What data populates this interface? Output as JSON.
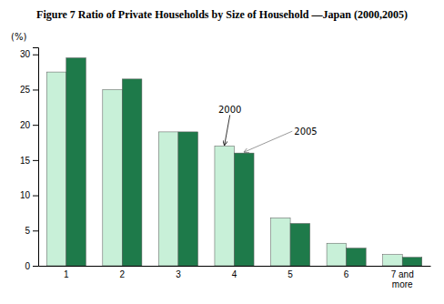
{
  "chart_data": {
    "type": "bar",
    "title": "Figure 7 Ratio of Private Households by Size of Household —Japan (2000,2005)",
    "ylabel": "(%)",
    "categories": [
      "1",
      "2",
      "3",
      "4",
      "5",
      "6",
      "7 and\nmore"
    ],
    "series": [
      {
        "name": "2000",
        "color": "#c8f0d8",
        "values": [
          27.5,
          25.0,
          19.0,
          17.0,
          6.8,
          3.2,
          1.6
        ]
      },
      {
        "name": "2005",
        "color": "#1e7a4a",
        "values": [
          29.5,
          26.5,
          19.0,
          16.0,
          6.0,
          2.5,
          1.2
        ]
      }
    ],
    "ylim": [
      0,
      31
    ],
    "yticks": [
      0,
      5,
      10,
      15,
      20,
      25,
      30
    ]
  }
}
